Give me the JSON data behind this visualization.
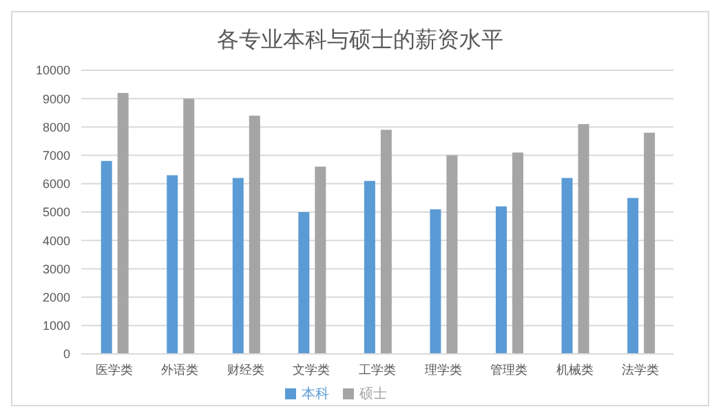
{
  "chart_data": {
    "type": "bar",
    "title": "各专业本科与硕士的薪资水平",
    "categories": [
      "医学类",
      "外语类",
      "财经类",
      "文学类",
      "工学类",
      "理学类",
      "管理类",
      "机械类",
      "法学类"
    ],
    "series": [
      {
        "name": "本科",
        "color": "#5b9bd5",
        "values": [
          6800,
          6300,
          6200,
          5000,
          6100,
          5100,
          5200,
          6200,
          5500
        ]
      },
      {
        "name": "硕士",
        "color": "#a5a5a5",
        "values": [
          9200,
          9000,
          8400,
          6600,
          7900,
          7000,
          7100,
          8100,
          7800
        ]
      }
    ],
    "ylim": [
      0,
      10000
    ],
    "yticks": [
      0,
      1000,
      2000,
      3000,
      4000,
      5000,
      6000,
      7000,
      8000,
      9000,
      10000
    ],
    "grid": "y",
    "legend": "bottom"
  }
}
